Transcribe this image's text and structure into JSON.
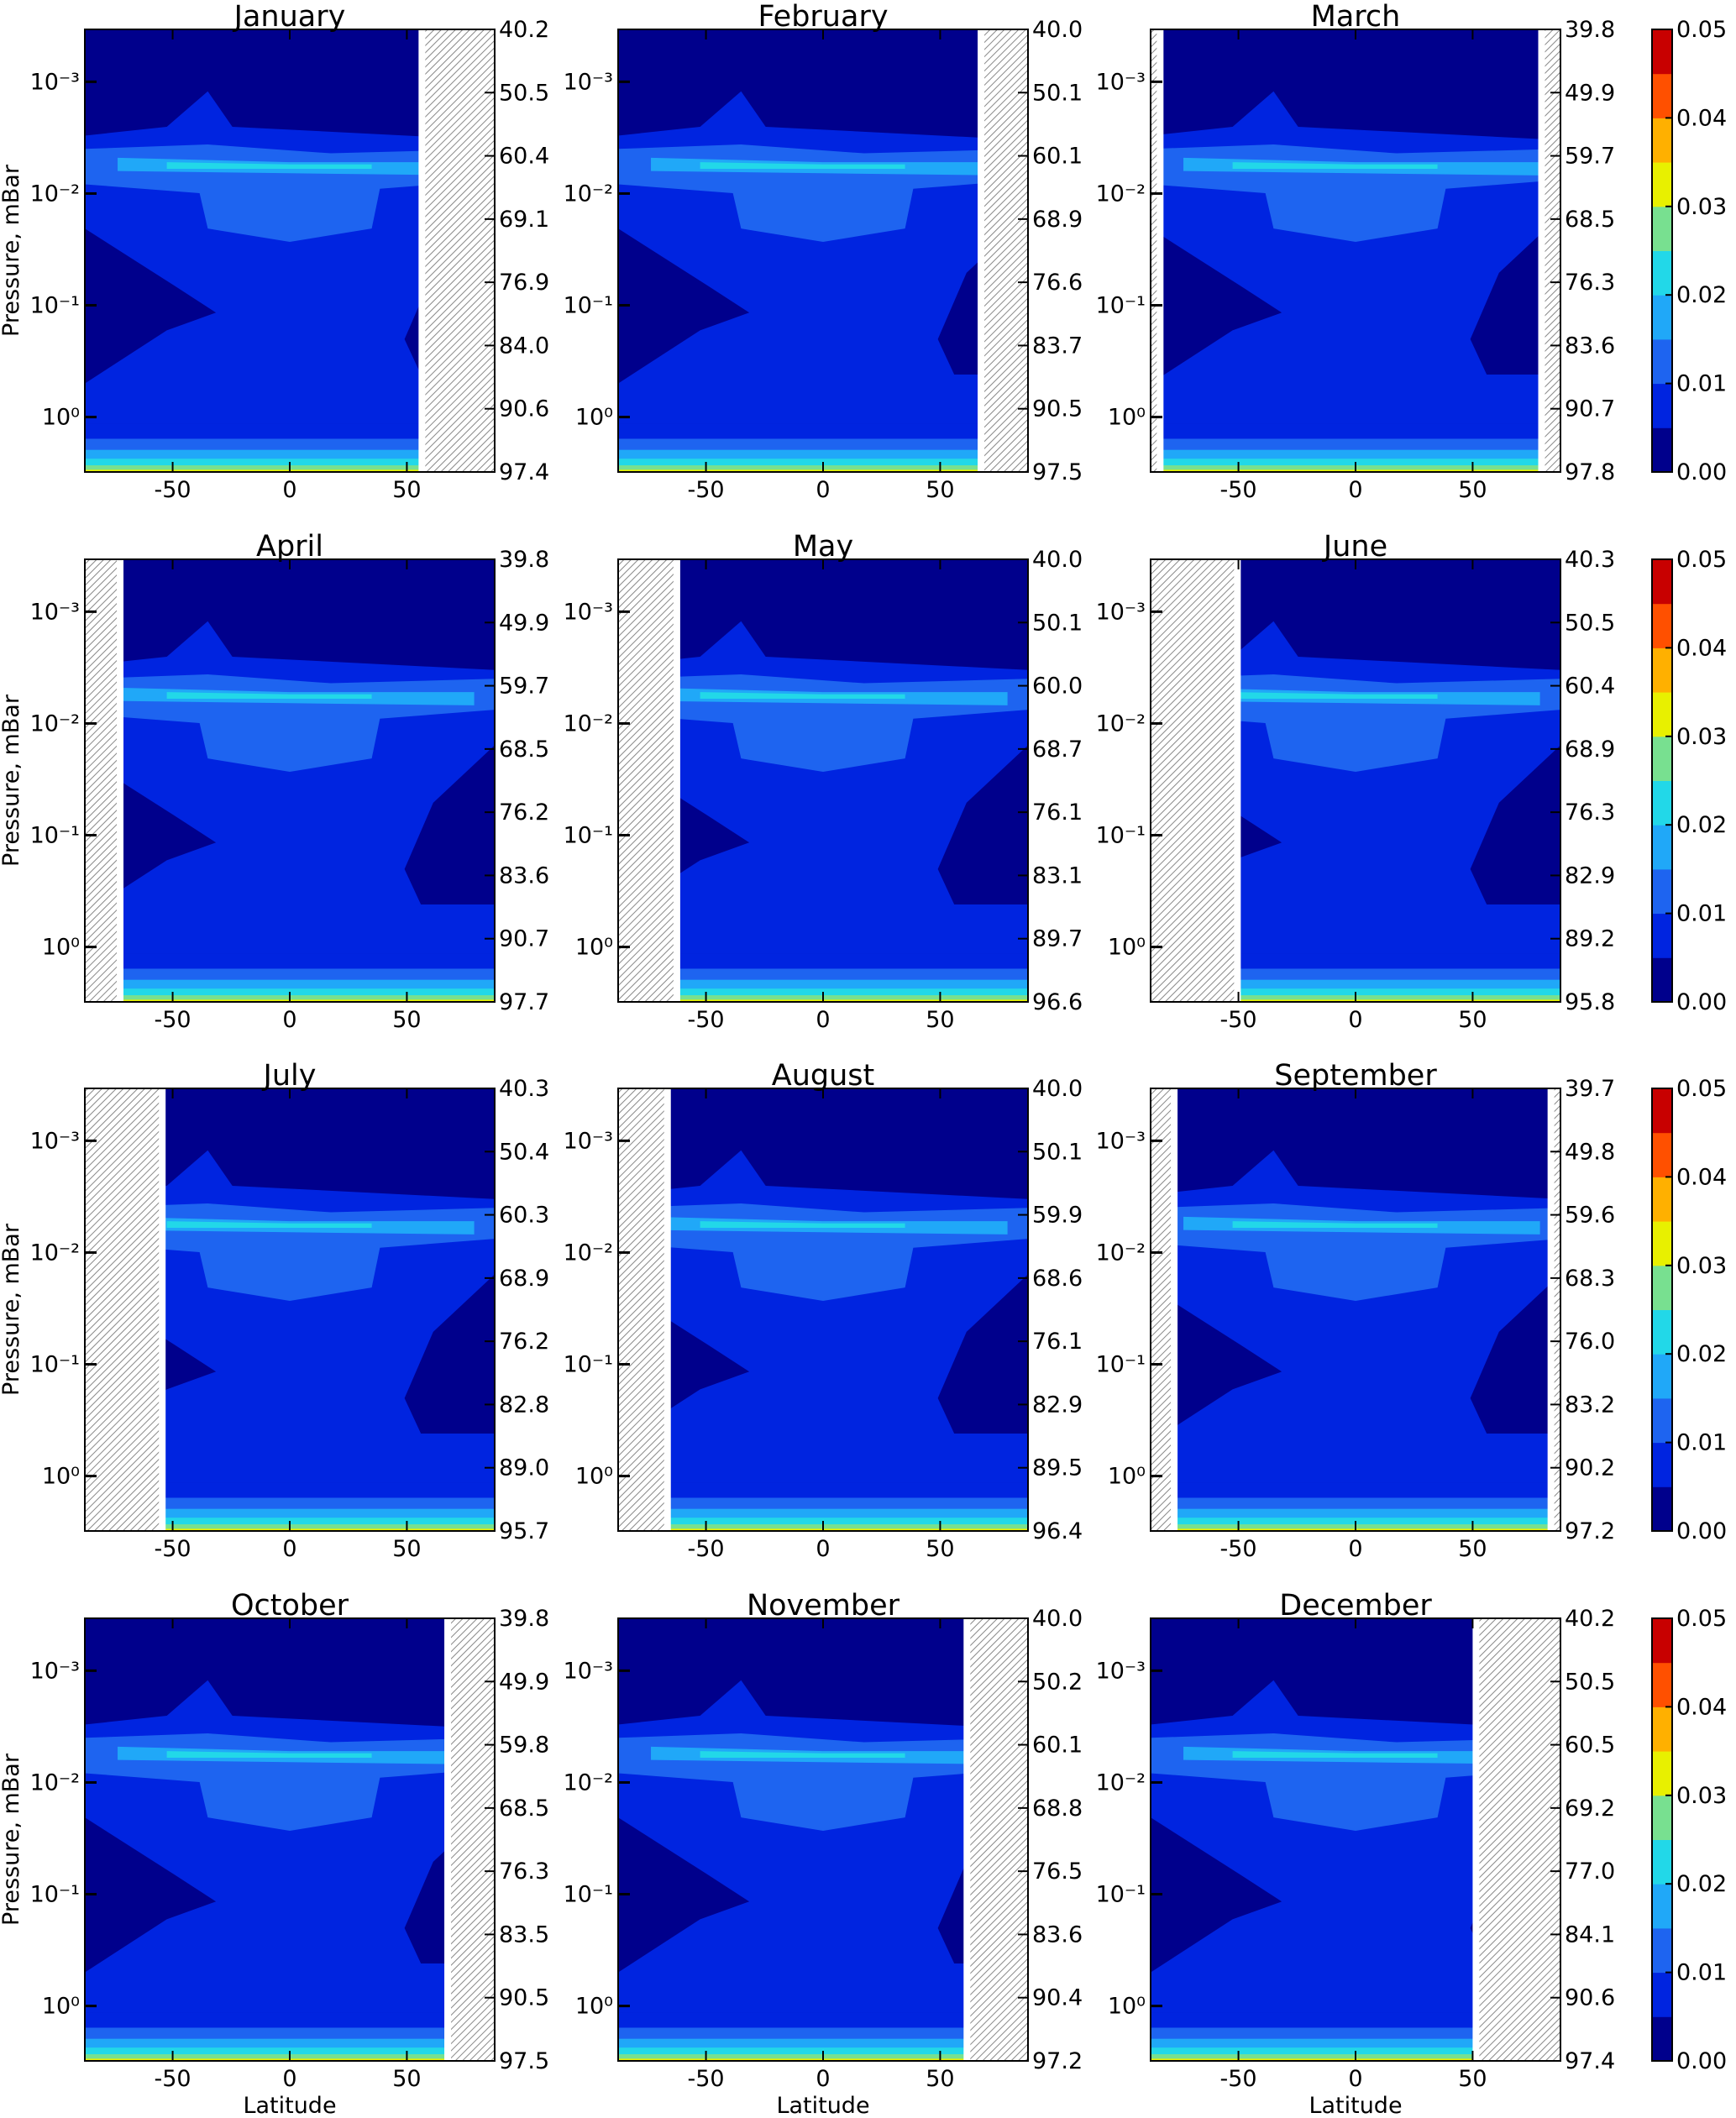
{
  "chart_data": [
    {
      "type": "contour",
      "title": "January",
      "ylabel": "Pressure, mBar",
      "xlim": [
        -87.5,
        87.5
      ],
      "xticks": [
        -50,
        0,
        50
      ],
      "ylim": [
        3.1,
        0.00034
      ],
      "log_y": true,
      "yticks": [
        {
          "value": 0.001,
          "label": "10⁻³"
        },
        {
          "value": 0.01,
          "label": "10⁻²"
        },
        {
          "value": 0.1,
          "label": "10⁻¹"
        },
        {
          "value": 1,
          "label": "10⁰"
        }
      ],
      "y2ticks": [
        97.4,
        90.6,
        {
          "value": 84,
          "label": "84.0"
        },
        76.9,
        69.1,
        60.4,
        50.5,
        40.2
      ],
      "hatched": [
        [
          55,
          87.5
        ]
      ]
    },
    {
      "type": "contour",
      "title": "February",
      "xlim": [
        -87.5,
        87.5
      ],
      "xticks": [
        -50,
        0,
        50
      ],
      "ylim": [
        3.1,
        0.00034
      ],
      "log_y": true,
      "yticks": [
        {
          "value": 0.001,
          "label": "10⁻³"
        },
        {
          "value": 0.01,
          "label": "10⁻²"
        },
        {
          "value": 0.1,
          "label": "10⁻¹"
        },
        {
          "value": 1,
          "label": "10⁰"
        }
      ],
      "y2ticks": [
        97.5,
        90.5,
        83.7,
        76.6,
        68.9,
        60.1,
        50.1,
        {
          "value": 40,
          "label": "40.0"
        }
      ],
      "hatched": [
        [
          66,
          87.5
        ]
      ]
    },
    {
      "type": "contour",
      "title": "March",
      "xlim": [
        -87.5,
        87.5
      ],
      "xticks": [
        -50,
        0,
        50
      ],
      "ylim": [
        3.1,
        0.00034
      ],
      "log_y": true,
      "yticks": [
        {
          "value": 0.001,
          "label": "10⁻³"
        },
        {
          "value": 0.01,
          "label": "10⁻²"
        },
        {
          "value": 0.1,
          "label": "10⁻¹"
        },
        {
          "value": 1,
          "label": "10⁰"
        }
      ],
      "y2ticks": [
        97.8,
        90.7,
        83.6,
        76.3,
        68.5,
        59.7,
        49.9,
        39.8
      ],
      "hatched": [
        [
          -87.5,
          -82
        ],
        [
          78,
          87.5
        ]
      ]
    },
    {
      "type": "colorbar",
      "ylim": [
        0,
        0.05
      ],
      "yticks": [
        {
          "value": 0,
          "label": "0.00"
        },
        0.01,
        0.02,
        0.03,
        0.04,
        0.05
      ],
      "colors": [
        "#00008c",
        "#0024e0",
        "#1e64f0",
        "#20a8f8",
        "#22d8e8",
        "#78e090",
        "#e8f000",
        "#ffb000",
        "#ff5000",
        "#c80000"
      ]
    },
    {
      "type": "contour",
      "title": "April",
      "ylabel": "Pressure, mBar",
      "xlim": [
        -87.5,
        87.5
      ],
      "xticks": [
        -50,
        0,
        50
      ],
      "ylim": [
        3.1,
        0.00034
      ],
      "log_y": true,
      "yticks": [
        {
          "value": 0.001,
          "label": "10⁻³"
        },
        {
          "value": 0.01,
          "label": "10⁻²"
        },
        {
          "value": 0.1,
          "label": "10⁻¹"
        },
        {
          "value": 1,
          "label": "10⁰"
        }
      ],
      "y2ticks": [
        97.7,
        90.7,
        83.6,
        76.2,
        68.5,
        59.7,
        49.9,
        39.8
      ],
      "hatched": [
        [
          -87.5,
          -71
        ]
      ]
    },
    {
      "type": "contour",
      "title": "May",
      "xlim": [
        -87.5,
        87.5
      ],
      "xticks": [
        -50,
        0,
        50
      ],
      "ylim": [
        3.1,
        0.00034
      ],
      "log_y": true,
      "yticks": [
        {
          "value": 0.001,
          "label": "10⁻³"
        },
        {
          "value": 0.01,
          "label": "10⁻²"
        },
        {
          "value": 0.1,
          "label": "10⁻¹"
        },
        {
          "value": 1,
          "label": "10⁰"
        }
      ],
      "y2ticks": [
        96.6,
        89.7,
        83.1,
        76.1,
        68.7,
        {
          "value": 60,
          "label": "60.0"
        },
        50.1,
        {
          "value": 40,
          "label": "40.0"
        }
      ],
      "hatched": [
        [
          -87.5,
          -61
        ]
      ]
    },
    {
      "type": "contour",
      "title": "June",
      "xlim": [
        -87.5,
        87.5
      ],
      "xticks": [
        -50,
        0,
        50
      ],
      "ylim": [
        3.1,
        0.00034
      ],
      "log_y": true,
      "yticks": [
        {
          "value": 0.001,
          "label": "10⁻³"
        },
        {
          "value": 0.01,
          "label": "10⁻²"
        },
        {
          "value": 0.1,
          "label": "10⁻¹"
        },
        {
          "value": 1,
          "label": "10⁰"
        }
      ],
      "y2ticks": [
        95.8,
        89.2,
        82.9,
        76.3,
        68.9,
        60.4,
        50.5,
        40.3
      ],
      "hatched": [
        [
          -87.5,
          -49
        ]
      ]
    },
    {
      "type": "colorbar",
      "ylim": [
        0,
        0.05
      ],
      "yticks": [
        {
          "value": 0,
          "label": "0.00"
        },
        0.01,
        0.02,
        0.03,
        0.04,
        0.05
      ],
      "colors": [
        "#00008c",
        "#0024e0",
        "#1e64f0",
        "#20a8f8",
        "#22d8e8",
        "#78e090",
        "#e8f000",
        "#ffb000",
        "#ff5000",
        "#c80000"
      ]
    },
    {
      "type": "contour",
      "title": "July",
      "ylabel": "Pressure, mBar",
      "xlim": [
        -87.5,
        87.5
      ],
      "xticks": [
        -50,
        0,
        50
      ],
      "ylim": [
        3.1,
        0.00034
      ],
      "log_y": true,
      "yticks": [
        {
          "value": 0.001,
          "label": "10⁻³"
        },
        {
          "value": 0.01,
          "label": "10⁻²"
        },
        {
          "value": 0.1,
          "label": "10⁻¹"
        },
        {
          "value": 1,
          "label": "10⁰"
        }
      ],
      "y2ticks": [
        95.7,
        {
          "value": 89,
          "label": "89.0"
        },
        82.8,
        76.2,
        68.9,
        60.3,
        50.4,
        40.3
      ],
      "hatched": [
        [
          -87.5,
          -53
        ]
      ]
    },
    {
      "type": "contour",
      "title": "August",
      "xlim": [
        -87.5,
        87.5
      ],
      "xticks": [
        -50,
        0,
        50
      ],
      "ylim": [
        3.1,
        0.00034
      ],
      "log_y": true,
      "yticks": [
        {
          "value": 0.001,
          "label": "10⁻³"
        },
        {
          "value": 0.01,
          "label": "10⁻²"
        },
        {
          "value": 0.1,
          "label": "10⁻¹"
        },
        {
          "value": 1,
          "label": "10⁰"
        }
      ],
      "y2ticks": [
        96.4,
        89.5,
        82.9,
        76.1,
        68.6,
        59.9,
        50.1,
        {
          "value": 40,
          "label": "40.0"
        }
      ],
      "hatched": [
        [
          -87.5,
          -65
        ]
      ]
    },
    {
      "type": "contour",
      "title": "September",
      "xlim": [
        -87.5,
        87.5
      ],
      "xticks": [
        -50,
        0,
        50
      ],
      "ylim": [
        3.1,
        0.00034
      ],
      "log_y": true,
      "yticks": [
        {
          "value": 0.001,
          "label": "10⁻³"
        },
        {
          "value": 0.01,
          "label": "10⁻²"
        },
        {
          "value": 0.1,
          "label": "10⁻¹"
        },
        {
          "value": 1,
          "label": "10⁰"
        }
      ],
      "y2ticks": [
        97.2,
        90.2,
        83.2,
        {
          "value": 76,
          "label": "76.0"
        },
        68.3,
        59.6,
        49.8,
        39.7
      ],
      "hatched": [
        [
          -87.5,
          -76
        ],
        [
          82,
          87.5
        ]
      ]
    },
    {
      "type": "colorbar",
      "ylim": [
        0,
        0.05
      ],
      "yticks": [
        {
          "value": 0,
          "label": "0.00"
        },
        0.01,
        0.02,
        0.03,
        0.04,
        0.05
      ],
      "colors": [
        "#00008c",
        "#0024e0",
        "#1e64f0",
        "#20a8f8",
        "#22d8e8",
        "#78e090",
        "#e8f000",
        "#ffb000",
        "#ff5000",
        "#c80000"
      ]
    },
    {
      "type": "contour",
      "title": "October",
      "ylabel": "Pressure, mBar",
      "xlabel": "Latitude",
      "xlim": [
        -87.5,
        87.5
      ],
      "xticks": [
        -50,
        0,
        50
      ],
      "ylim": [
        3.1,
        0.00034
      ],
      "log_y": true,
      "yticks": [
        {
          "value": 0.001,
          "label": "10⁻³"
        },
        {
          "value": 0.01,
          "label": "10⁻²"
        },
        {
          "value": 0.1,
          "label": "10⁻¹"
        },
        {
          "value": 1,
          "label": "10⁰"
        }
      ],
      "y2ticks": [
        97.5,
        90.5,
        83.5,
        76.3,
        68.5,
        59.8,
        49.9,
        39.8
      ],
      "hatched": [
        [
          66,
          87.5
        ]
      ]
    },
    {
      "type": "contour",
      "title": "November",
      "xlabel": "Latitude",
      "xlim": [
        -87.5,
        87.5
      ],
      "xticks": [
        -50,
        0,
        50
      ],
      "ylim": [
        3.1,
        0.00034
      ],
      "log_y": true,
      "yticks": [
        {
          "value": 0.001,
          "label": "10⁻³"
        },
        {
          "value": 0.01,
          "label": "10⁻²"
        },
        {
          "value": 0.1,
          "label": "10⁻¹"
        },
        {
          "value": 1,
          "label": "10⁰"
        }
      ],
      "y2ticks": [
        97.2,
        90.4,
        83.6,
        76.5,
        68.8,
        60.1,
        50.2,
        {
          "value": 40,
          "label": "40.0"
        }
      ],
      "hatched": [
        [
          60,
          87.5
        ]
      ]
    },
    {
      "type": "contour",
      "title": "December",
      "xlabel": "Latitude",
      "xlim": [
        -87.5,
        87.5
      ],
      "xticks": [
        -50,
        0,
        50
      ],
      "ylim": [
        3.1,
        0.00034
      ],
      "log_y": true,
      "yticks": [
        {
          "value": 0.001,
          "label": "10⁻³"
        },
        {
          "value": 0.01,
          "label": "10⁻²"
        },
        {
          "value": 0.1,
          "label": "10⁻¹"
        },
        {
          "value": 1,
          "label": "10⁰"
        }
      ],
      "y2ticks": [
        97.4,
        90.6,
        84.1,
        {
          "value": 77,
          "label": "77.0"
        },
        69.2,
        60.5,
        50.5,
        40.2
      ],
      "hatched": [
        [
          50,
          87.5
        ]
      ]
    },
    {
      "type": "colorbar",
      "ylim": [
        0,
        0.05
      ],
      "yticks": [
        {
          "value": 0,
          "label": "0.00"
        },
        0.01,
        0.02,
        0.03,
        0.04,
        0.05
      ],
      "colors": [
        "#00008c",
        "#0024e0",
        "#1e64f0",
        "#20a8f8",
        "#22d8e8",
        "#78e090",
        "#e8f000",
        "#ffb000",
        "#ff5000",
        "#c80000"
      ]
    }
  ]
}
